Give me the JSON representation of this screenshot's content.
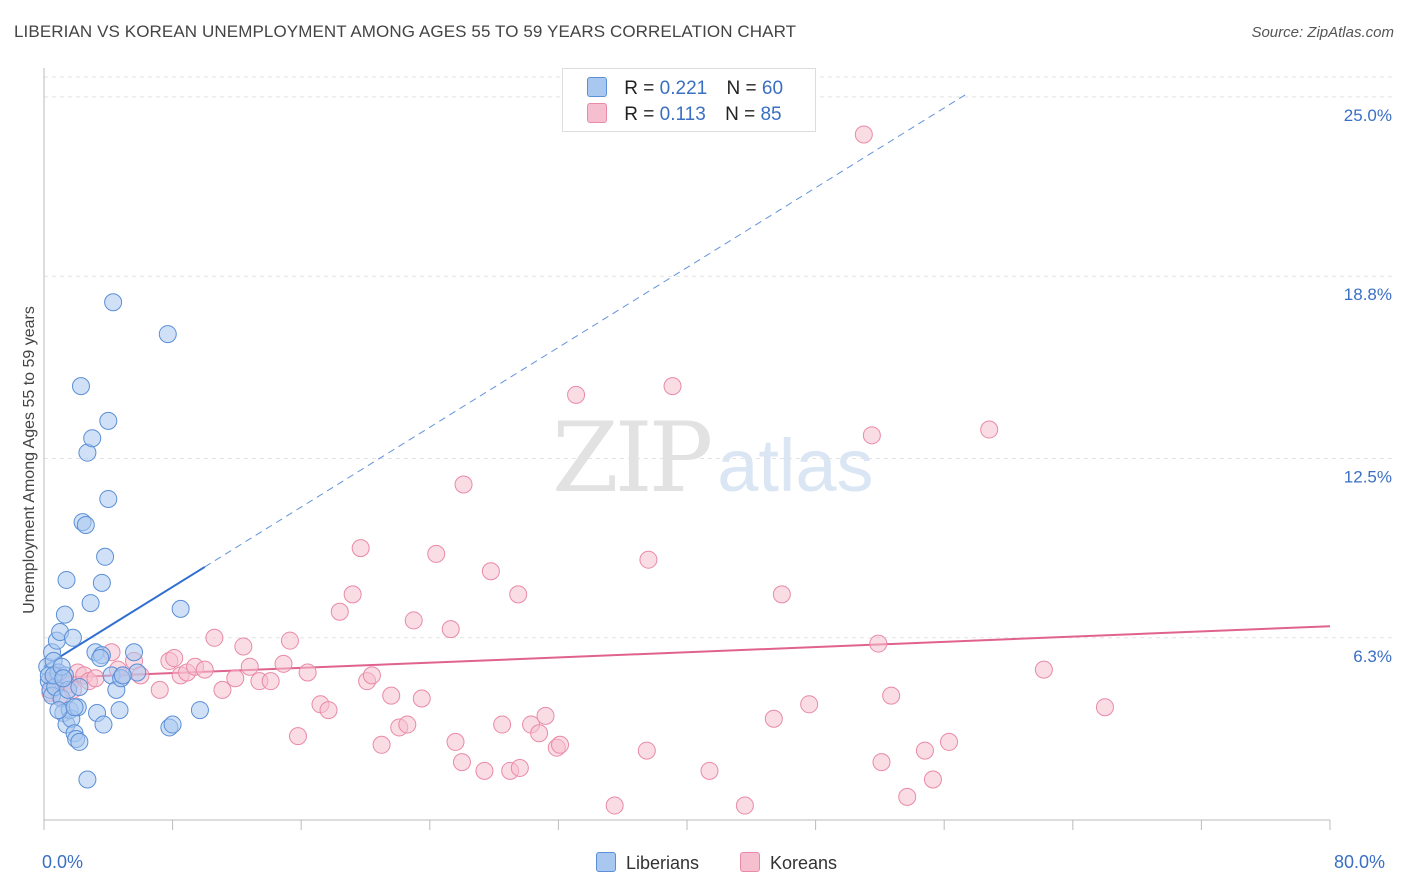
{
  "title": "LIBERIAN VS KOREAN UNEMPLOYMENT AMONG AGES 55 TO 59 YEARS CORRELATION CHART",
  "source": "Source: ZipAtlas.com",
  "watermark": {
    "zip": "ZIP",
    "atlas": "atlas"
  },
  "colors": {
    "liberian_fill": "#a9c8f0",
    "liberian_stroke": "#5b8fd6",
    "liberian_line": "#2f6fd0",
    "korean_fill": "#f6bfd0",
    "korean_stroke": "#e98aa8",
    "korean_line": "#e0628e",
    "tick_text": "#3a6fc4",
    "grid": "#e3e3e3"
  },
  "legend_top": [
    {
      "r_label": "R =",
      "r_value": "0.221",
      "n_label": "N =",
      "n_value": "60"
    },
    {
      "r_label": "R =",
      "r_value": "0.113",
      "n_label": "N =",
      "n_value": "85"
    }
  ],
  "legend_bottom": [
    "Liberians",
    "Koreans"
  ],
  "chart_data": {
    "type": "scatter",
    "ylabel": "Unemployment Among Ages 55 to 59 years",
    "xlabel": "",
    "xlim": [
      0,
      80
    ],
    "ylim": [
      0,
      26
    ],
    "x_tick_labels": [
      "0.0%",
      "80.0%"
    ],
    "y_ticks": [
      {
        "value": 6.3,
        "label": "6.3%"
      },
      {
        "value": 12.5,
        "label": "12.5%"
      },
      {
        "value": 18.8,
        "label": "18.8%"
      },
      {
        "value": 25.0,
        "label": "25.0%"
      }
    ],
    "grid": true,
    "series": [
      {
        "name": "Liberians",
        "points": [
          [
            0.2,
            5.3
          ],
          [
            0.3,
            4.8
          ],
          [
            0.4,
            4.5
          ],
          [
            0.5,
            5.8
          ],
          [
            0.3,
            5.0
          ],
          [
            0.6,
            5.5
          ],
          [
            0.5,
            4.3
          ],
          [
            0.8,
            6.2
          ],
          [
            0.7,
            4.6
          ],
          [
            0.9,
            5.1
          ],
          [
            1.0,
            6.5
          ],
          [
            1.1,
            4.2
          ],
          [
            1.2,
            3.7
          ],
          [
            1.3,
            5.0
          ],
          [
            1.4,
            3.3
          ],
          [
            1.5,
            4.5
          ],
          [
            1.3,
            7.1
          ],
          [
            1.4,
            8.3
          ],
          [
            1.6,
            3.8
          ],
          [
            1.7,
            3.5
          ],
          [
            1.8,
            6.3
          ],
          [
            1.9,
            3.0
          ],
          [
            2.0,
            2.8
          ],
          [
            2.1,
            3.9
          ],
          [
            2.2,
            2.7
          ],
          [
            2.3,
            15.0
          ],
          [
            2.4,
            10.3
          ],
          [
            2.6,
            10.2
          ],
          [
            2.7,
            1.4
          ],
          [
            2.9,
            7.5
          ],
          [
            2.7,
            12.7
          ],
          [
            3.0,
            13.2
          ],
          [
            3.2,
            5.8
          ],
          [
            3.3,
            3.7
          ],
          [
            3.6,
            5.7
          ],
          [
            3.6,
            8.2
          ],
          [
            3.7,
            3.3
          ],
          [
            3.8,
            9.1
          ],
          [
            4.0,
            11.1
          ],
          [
            4.0,
            13.8
          ],
          [
            4.2,
            5.0
          ],
          [
            4.3,
            17.9
          ],
          [
            4.5,
            4.5
          ],
          [
            4.7,
            3.8
          ],
          [
            4.8,
            4.9
          ],
          [
            5.6,
            5.8
          ],
          [
            5.8,
            5.1
          ],
          [
            7.7,
            16.8
          ],
          [
            7.8,
            3.2
          ],
          [
            8.0,
            3.3
          ],
          [
            8.5,
            7.3
          ],
          [
            9.7,
            3.8
          ],
          [
            0.6,
            5.0
          ],
          [
            0.9,
            3.8
          ],
          [
            1.1,
            5.3
          ],
          [
            1.2,
            4.9
          ],
          [
            1.9,
            3.9
          ],
          [
            2.2,
            4.6
          ],
          [
            3.5,
            5.6
          ],
          [
            4.9,
            5.0
          ]
        ]
      },
      {
        "name": "Koreans",
        "points": [
          [
            0.4,
            4.4
          ],
          [
            0.6,
            4.8
          ],
          [
            0.8,
            5.0
          ],
          [
            1.0,
            4.3
          ],
          [
            1.3,
            4.8
          ],
          [
            1.6,
            4.7
          ],
          [
            1.8,
            4.5
          ],
          [
            2.1,
            5.1
          ],
          [
            2.5,
            5.0
          ],
          [
            2.8,
            4.8
          ],
          [
            3.2,
            4.9
          ],
          [
            4.2,
            5.8
          ],
          [
            4.6,
            5.2
          ],
          [
            4.9,
            5.0
          ],
          [
            5.6,
            5.5
          ],
          [
            6.0,
            5.0
          ],
          [
            7.2,
            4.5
          ],
          [
            7.8,
            5.5
          ],
          [
            8.1,
            5.6
          ],
          [
            8.5,
            5.0
          ],
          [
            8.9,
            5.1
          ],
          [
            9.4,
            5.3
          ],
          [
            10.0,
            5.2
          ],
          [
            10.6,
            6.3
          ],
          [
            11.1,
            4.5
          ],
          [
            11.9,
            4.9
          ],
          [
            12.4,
            6.0
          ],
          [
            12.8,
            5.3
          ],
          [
            13.4,
            4.8
          ],
          [
            14.1,
            4.8
          ],
          [
            14.9,
            5.4
          ],
          [
            15.3,
            6.2
          ],
          [
            15.8,
            2.9
          ],
          [
            16.4,
            5.1
          ],
          [
            17.2,
            4.0
          ],
          [
            17.7,
            3.8
          ],
          [
            18.4,
            7.2
          ],
          [
            19.2,
            7.8
          ],
          [
            19.7,
            9.4
          ],
          [
            20.1,
            4.8
          ],
          [
            20.4,
            5.0
          ],
          [
            21.0,
            2.6
          ],
          [
            21.6,
            4.3
          ],
          [
            22.1,
            3.2
          ],
          [
            22.6,
            3.3
          ],
          [
            23.0,
            6.9
          ],
          [
            23.5,
            4.2
          ],
          [
            24.4,
            9.2
          ],
          [
            25.3,
            6.6
          ],
          [
            25.6,
            2.7
          ],
          [
            26.0,
            2.0
          ],
          [
            26.1,
            11.6
          ],
          [
            27.4,
            1.7
          ],
          [
            27.8,
            8.6
          ],
          [
            28.5,
            3.3
          ],
          [
            29.0,
            1.7
          ],
          [
            29.5,
            7.8
          ],
          [
            29.6,
            1.8
          ],
          [
            30.3,
            3.3
          ],
          [
            30.8,
            3.0
          ],
          [
            31.2,
            3.6
          ],
          [
            31.9,
            2.5
          ],
          [
            32.1,
            2.6
          ],
          [
            33.1,
            14.7
          ],
          [
            35.5,
            0.5
          ],
          [
            37.5,
            2.4
          ],
          [
            37.6,
            9.0
          ],
          [
            39.1,
            15.0
          ],
          [
            41.4,
            1.7
          ],
          [
            43.6,
            0.5
          ],
          [
            45.4,
            3.5
          ],
          [
            45.9,
            7.8
          ],
          [
            47.6,
            4.0
          ],
          [
            51.0,
            23.7
          ],
          [
            51.5,
            13.3
          ],
          [
            51.9,
            6.1
          ],
          [
            52.1,
            2.0
          ],
          [
            52.7,
            4.3
          ],
          [
            53.7,
            0.8
          ],
          [
            54.8,
            2.4
          ],
          [
            55.3,
            1.4
          ],
          [
            56.3,
            2.7
          ],
          [
            58.8,
            13.5
          ],
          [
            62.2,
            5.2
          ],
          [
            66.0,
            3.9
          ]
        ]
      }
    ],
    "trendlines": [
      {
        "series": "Liberians",
        "solid_x": [
          0,
          10
        ],
        "dashed_x": [
          10,
          57.5
        ],
        "y_at_x0": 5.3,
        "slope": 0.345
      },
      {
        "series": "Koreans",
        "x": [
          0,
          80
        ],
        "y": [
          4.9,
          6.7
        ]
      }
    ]
  }
}
